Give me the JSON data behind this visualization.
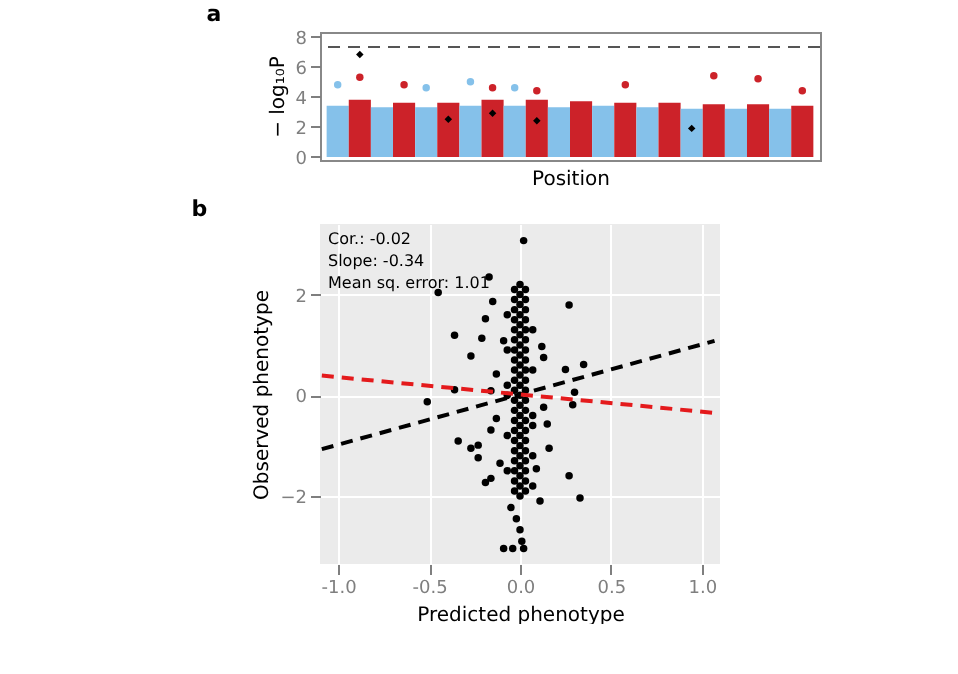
{
  "chart_data": [
    {
      "type": "bar",
      "title": "a",
      "xlabel": "Position",
      "ylabel": "− log₁₀P",
      "ylim": [
        -0.2,
        8.3
      ],
      "yticks": [
        0,
        2,
        4,
        6,
        8
      ],
      "tick_labels": "y",
      "grid": false,
      "categories": [
        null,
        null,
        null,
        null,
        null,
        null,
        null,
        null,
        null,
        null,
        null,
        null,
        null,
        null,
        null,
        null,
        null,
        null,
        null,
        null,
        null,
        null
      ],
      "ref_lines": [
        {
          "axis": "y",
          "value": 7.3,
          "color": "#555555",
          "line_style": "dashed"
        }
      ],
      "series": [
        {
          "values": [
            3.4,
            3.8,
            3.3,
            3.6,
            3.3,
            3.6,
            3.4,
            3.8,
            3.4,
            3.8,
            3.3,
            3.7,
            3.4,
            3.6,
            3.3,
            3.6,
            3.2,
            3.5,
            3.2,
            3.5,
            3.2,
            3.4
          ],
          "colors": [
            "#85c1ea",
            "#cc2229",
            "#85c1ea",
            "#cc2229",
            "#85c1ea",
            "#cc2229",
            "#85c1ea",
            "#cc2229",
            "#85c1ea",
            "#cc2229",
            "#85c1ea",
            "#cc2229",
            "#85c1ea",
            "#cc2229",
            "#85c1ea",
            "#cc2229",
            "#85c1ea",
            "#cc2229",
            "#85c1ea",
            "#cc2229",
            "#85c1ea",
            "#cc2229"
          ]
        },
        {
          "type": "scatter",
          "marker": "circle",
          "values": [
            4.8,
            5.3,
            null,
            4.8,
            4.6,
            null,
            5.0,
            4.6,
            4.6,
            4.4,
            null,
            null,
            null,
            4.8,
            null,
            null,
            null,
            5.4,
            null,
            5.2,
            null,
            4.4
          ],
          "colors": [
            "#85c1ea",
            "#cc2229",
            "#85c1ea",
            "#cc2229",
            "#85c1ea",
            "#cc2229",
            "#85c1ea",
            "#cc2229",
            "#85c1ea",
            "#cc2229",
            "#85c1ea",
            "#cc2229",
            "#85c1ea",
            "#cc2229",
            "#85c1ea",
            "#cc2229",
            "#85c1ea",
            "#cc2229",
            "#85c1ea",
            "#cc2229",
            "#85c1ea",
            "#cc2229"
          ]
        },
        {
          "type": "scatter",
          "marker": "diamond",
          "color": "#000000",
          "values": [
            null,
            6.8,
            null,
            null,
            null,
            2.5,
            null,
            2.9,
            null,
            2.4,
            null,
            null,
            null,
            null,
            null,
            null,
            1.9,
            null,
            null,
            null,
            null,
            null
          ]
        }
      ]
    },
    {
      "type": "scatter",
      "title": "b",
      "xlabel": "Predicted phenotype",
      "ylabel": "Observed phenotype",
      "xlim": [
        -1.1,
        1.1
      ],
      "ylim": [
        -3.35,
        3.4
      ],
      "xticks": [
        {
          "value": -1,
          "label": "-1.0"
        },
        {
          "value": -0.5,
          "label": "-0.5"
        },
        {
          "value": 0,
          "label": "0.0"
        },
        {
          "value": 0.5,
          "label": "0.5"
        },
        {
          "value": 1,
          "label": "1.0"
        }
      ],
      "yticks": [
        -2,
        0,
        2
      ],
      "grid": true,
      "annotations": [
        "Cor.: -0.02",
        "Slope: -0.34",
        "Mean sq. error: 1.01"
      ],
      "series": [
        {
          "marker": "circle",
          "color": "#000000",
          "x": [
            0.02,
            -0.17,
            -0.45,
            0.27,
            -0.36,
            -0.27,
            -0.19,
            -0.21,
            0.25,
            0.35,
            -0.51,
            -0.36,
            -0.34,
            -0.27,
            -0.23,
            -0.23,
            -0.19,
            0.27,
            0.33,
            0.11,
            -0.09,
            -0.04,
            0.02,
            0.3,
            0.29,
            0.16,
            -0.11,
            -0.16,
            -0.13,
            0.13,
            0.12,
            -0.15,
            -0.13,
            -0.16,
            -0.09,
            0.13,
            0.15,
            0.09,
            0,
            0.01,
            -0.02,
            -0.05,
            -0.16,
            -0.03,
            -0.03,
            -0.03,
            -0.03,
            -0.03,
            -0.03,
            -0.03,
            -0.03,
            -0.03,
            -0.03,
            -0.03,
            -0.03,
            -0.03,
            -0.03,
            -0.03,
            -0.03,
            -0.03,
            -0.03,
            -0.03,
            -0.03,
            -0.03,
            0,
            0,
            0,
            0,
            0,
            0,
            0,
            0,
            0,
            0,
            0,
            0,
            0,
            0,
            0,
            0,
            0,
            0,
            0,
            0,
            0,
            0,
            0.03,
            0.03,
            0.03,
            0.03,
            0.03,
            0.03,
            0.03,
            0.03,
            0.03,
            0.03,
            0.03,
            0.03,
            0.03,
            0.03,
            0.03,
            0.03,
            0.03,
            0.03,
            0.03,
            0.03,
            0.03,
            -0.07,
            0.07,
            -0.07,
            0.07,
            -0.07,
            0.07,
            -0.07,
            0.07,
            -0.07,
            0.07,
            -0.07,
            0.07
          ],
          "values": [
            3.07,
            2.35,
            2.04,
            1.79,
            1.19,
            0.78,
            1.52,
            1.13,
            0.51,
            0.61,
            -0.13,
            0.11,
            -0.91,
            -1.05,
            -1.24,
            -0.99,
            -1.73,
            -1.6,
            -2.04,
            -2.1,
            -3.04,
            -3.04,
            -3.04,
            0.06,
            -0.19,
            -1.05,
            -1.35,
            -0.69,
            -0.46,
            0.75,
            0.97,
            1.86,
            0.42,
            0.09,
            1.08,
            -0.24,
            -0.57,
            -1.46,
            -2.67,
            -2.9,
            -2.45,
            -2.23,
            -1.65,
            -1.9,
            -1.7,
            -1.5,
            -1.3,
            -1.1,
            -0.9,
            -0.7,
            -0.5,
            -0.3,
            -0.1,
            0.1,
            0.3,
            0.5,
            0.7,
            0.9,
            1.1,
            1.3,
            1.5,
            1.7,
            1.9,
            2.1,
            -2.0,
            -1.8,
            -1.6,
            -1.4,
            -1.2,
            -1.0,
            -0.8,
            -0.6,
            -0.4,
            -0.2,
            0.0,
            0.2,
            0.4,
            0.6,
            0.8,
            1.0,
            1.2,
            1.4,
            1.6,
            1.8,
            2.0,
            2.2,
            -1.9,
            -1.7,
            -1.5,
            -1.3,
            -1.1,
            -0.9,
            -0.7,
            -0.5,
            -0.3,
            -0.1,
            0.1,
            0.3,
            0.5,
            0.7,
            0.9,
            1.1,
            1.3,
            1.5,
            1.7,
            1.9,
            2.1,
            -1.5,
            -1.2,
            -0.8,
            -0.4,
            0.2,
            0.5,
            0.9,
            1.3,
            1.6,
            -1.8,
            0.0,
            -0.6
          ]
        },
        {
          "type": "line",
          "color": "#000000",
          "line_style": "dashed",
          "x": [
            -1.09,
            1.07
          ],
          "values": [
            -1.07,
            1.08
          ]
        },
        {
          "type": "line",
          "color": "#e41a1c",
          "line_style": "dashed",
          "x": [
            -1.09,
            1.07
          ],
          "values": [
            0.39,
            -0.35
          ]
        }
      ]
    }
  ]
}
